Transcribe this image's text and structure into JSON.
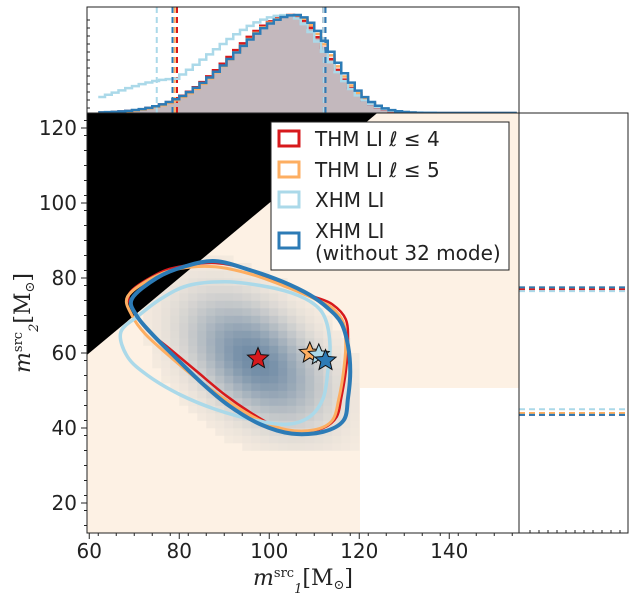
{
  "chart_data": {
    "type": "scatter",
    "title": "",
    "xlabel": "m₁^src [M⊙]",
    "ylabel": "m₂^src [M⊙]",
    "xlim": [
      59.5,
      155.5
    ],
    "ylim": [
      12,
      124
    ],
    "xticks": [
      60,
      80,
      100,
      120,
      140
    ],
    "yticks": [
      20,
      40,
      60,
      80,
      100,
      120
    ],
    "xtick_labels": [
      "60",
      "80",
      "100",
      "120",
      "140"
    ],
    "ytick_labels": [
      "20",
      "40",
      "60",
      "80",
      "100",
      "120"
    ],
    "excluded_region": "m2 > m1 (black)",
    "legend_position": "top-right",
    "series": [
      {
        "name": "THM LI ℓ≤4",
        "color": "#d7191c",
        "median": [
          97.5,
          58.5
        ],
        "x_quantiles": [
          79.5,
          112.0
        ],
        "y_quantiles": [
          43.5,
          77.0
        ],
        "contour": [
          [
            69,
            76
          ],
          [
            75,
            81
          ],
          [
            80,
            83
          ],
          [
            88,
            84
          ],
          [
            96,
            82
          ],
          [
            103,
            78
          ],
          [
            110,
            75
          ],
          [
            114,
            73
          ],
          [
            117,
            69
          ],
          [
            117.5,
            63
          ],
          [
            117,
            55
          ],
          [
            116,
            48
          ],
          [
            115,
            43
          ],
          [
            112,
            40
          ],
          [
            107,
            39
          ],
          [
            102,
            40
          ],
          [
            96,
            44
          ],
          [
            90,
            49
          ],
          [
            84,
            55
          ],
          [
            78,
            61
          ],
          [
            73,
            66
          ],
          [
            70,
            71
          ]
        ]
      },
      {
        "name": "THM LI ℓ≤5",
        "color": "#fdae61",
        "median": [
          109.0,
          60.0
        ],
        "x_quantiles": [
          79.0,
          112.5
        ],
        "y_quantiles": [
          44.0,
          77.5
        ],
        "contour": [
          [
            68.5,
            75
          ],
          [
            74,
            80
          ],
          [
            80,
            82.5
          ],
          [
            88,
            83
          ],
          [
            96,
            81
          ],
          [
            103,
            78
          ],
          [
            110,
            74.5
          ],
          [
            114,
            72
          ],
          [
            116.5,
            68
          ],
          [
            117,
            62
          ],
          [
            116.5,
            55
          ],
          [
            115.5,
            48
          ],
          [
            114,
            42
          ],
          [
            110,
            39.5
          ],
          [
            104,
            39.5
          ],
          [
            98,
            42
          ],
          [
            91,
            47
          ],
          [
            84,
            53
          ],
          [
            78,
            59
          ],
          [
            72.5,
            65
          ],
          [
            69.5,
            70
          ]
        ]
      },
      {
        "name": "XHM LI",
        "color": "#abd9e9",
        "median": [
          111.0,
          59.5
        ],
        "x_quantiles": [
          75.0,
          112.0
        ],
        "y_quantiles": [
          45.0,
          76.5
        ],
        "contour": [
          [
            67,
            65.5
          ],
          [
            71,
            70
          ],
          [
            76,
            74.5
          ],
          [
            82,
            78
          ],
          [
            90,
            79
          ],
          [
            98,
            78
          ],
          [
            105,
            76
          ],
          [
            110,
            73
          ],
          [
            112.5,
            69
          ],
          [
            113.5,
            62
          ],
          [
            113,
            55
          ],
          [
            112,
            48
          ],
          [
            109,
            43
          ],
          [
            104,
            41
          ],
          [
            97,
            42
          ],
          [
            88,
            45
          ],
          [
            80,
            49
          ],
          [
            73,
            54
          ],
          [
            68.5,
            59
          ]
        ]
      },
      {
        "name": "XHM LI\n(without 32 mode)",
        "color": "#2c7bb6",
        "median": [
          112.5,
          58.0
        ],
        "x_quantiles": [
          78.5,
          112.5
        ],
        "y_quantiles": [
          43.5,
          77.5
        ],
        "contour": [
          [
            69.5,
            74.5
          ],
          [
            75,
            80
          ],
          [
            81,
            83
          ],
          [
            88,
            84.5
          ],
          [
            96,
            82
          ],
          [
            103,
            79
          ],
          [
            109,
            75.5
          ],
          [
            113,
            72
          ],
          [
            116,
            68
          ],
          [
            117.5,
            62
          ],
          [
            118,
            55
          ],
          [
            117.5,
            48
          ],
          [
            116.5,
            42
          ],
          [
            112,
            39
          ],
          [
            105,
            38.5
          ],
          [
            98,
            41
          ],
          [
            91,
            46
          ],
          [
            85,
            52
          ],
          [
            79,
            59
          ],
          [
            74,
            65
          ],
          [
            70.5,
            70
          ]
        ]
      }
    ]
  },
  "legend": [
    {
      "label": "THM LI ℓ ≤ 4",
      "color": "#d7191c"
    },
    {
      "label": "THM LI ℓ ≤ 5",
      "color": "#fdae61"
    },
    {
      "label": "XHM LI",
      "color": "#abd9e9"
    },
    {
      "label_line1": "XHM LI",
      "label_line2": "(without 32 mode)",
      "color": "#2c7bb6"
    }
  ]
}
